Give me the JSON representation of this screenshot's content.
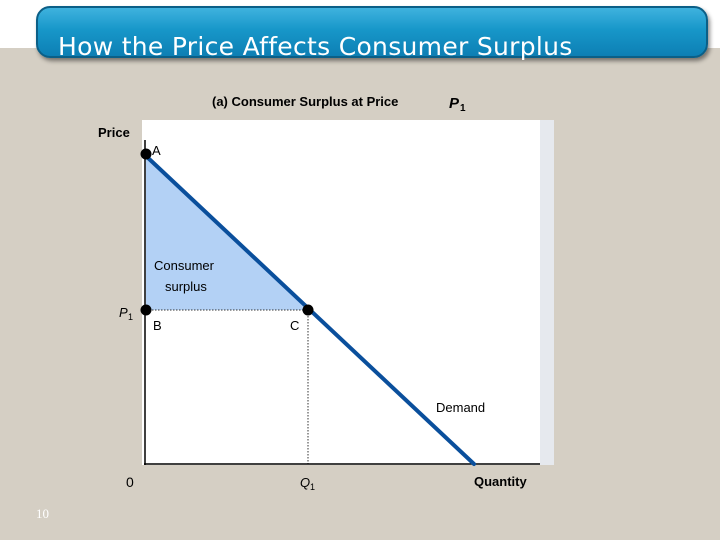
{
  "slide": {
    "title": "How the Price Affects Consumer Surplus",
    "number": "10"
  },
  "diagram": {
    "panel_title": "(a) Consumer Surplus at Price",
    "panel_title_symbol": "P",
    "panel_title_subscript": "1",
    "y_axis_label": "Price",
    "x_axis_label": "Quantity",
    "origin_label": "0",
    "price_label": "P",
    "price_subscript": "1",
    "quantity_label": "Q",
    "quantity_subscript": "1",
    "point_a": "A",
    "point_b": "B",
    "point_c": "C",
    "surplus_label_line1": "Consumer",
    "surplus_label_line2": "surplus",
    "curve_label": "Demand"
  },
  "colors": {
    "demand_line": "#0a4f9c",
    "surplus_fill": "#b3d1f5",
    "title_bar": "#1797c9",
    "background": "#d5cfc4"
  }
}
